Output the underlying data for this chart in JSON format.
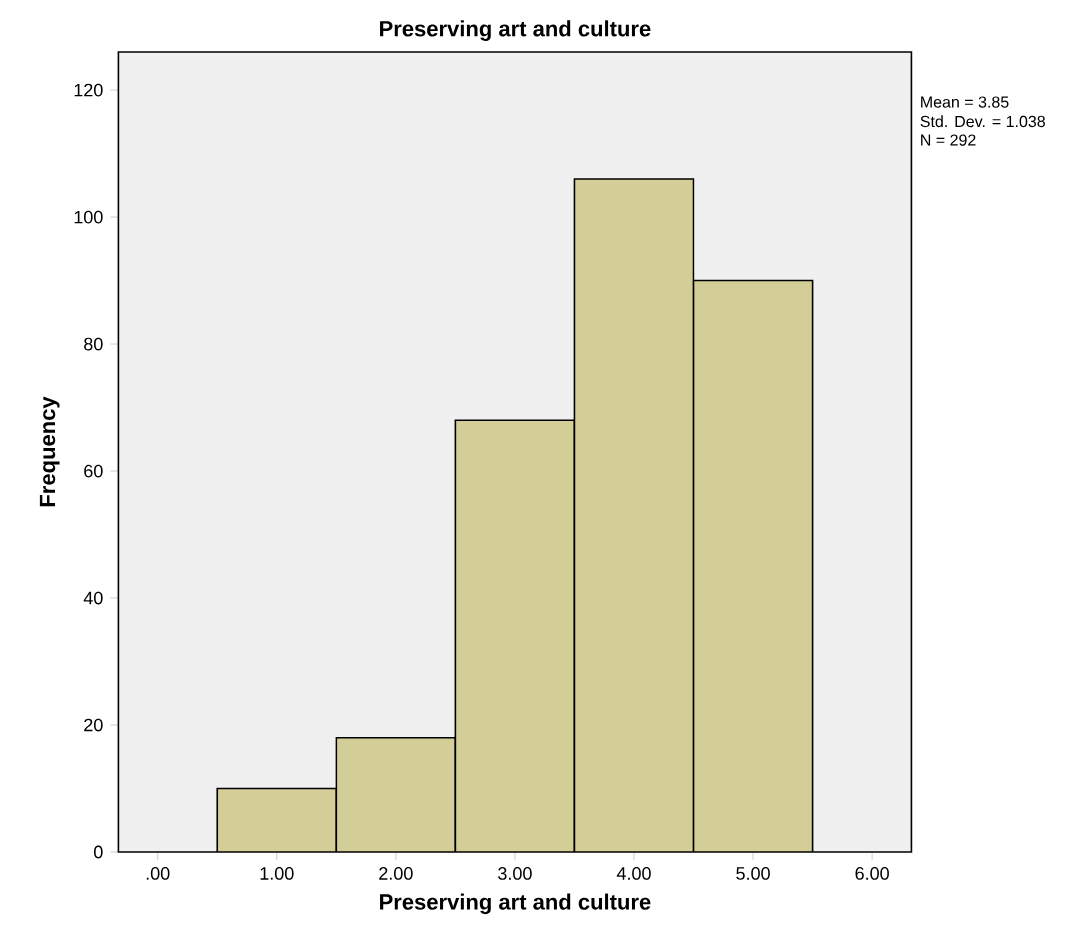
{
  "chart_data": {
    "type": "histogram",
    "title": "Preserving art and culture",
    "xlabel": "Preserving art and culture",
    "ylabel": "Frequency",
    "bins": [
      0.5,
      1.5,
      2.5,
      3.5,
      4.5,
      5.5
    ],
    "values": [
      10,
      18,
      68,
      106,
      90
    ],
    "color": "#d3ce97",
    "xlim": [
      -0.33,
      6.33
    ],
    "ylim": [
      0,
      126
    ],
    "xticks": [
      {
        "value": 0,
        "label": ".00"
      },
      {
        "value": 1,
        "label": "1.00"
      },
      {
        "value": 2,
        "label": "2.00"
      },
      {
        "value": 3,
        "label": "3.00"
      },
      {
        "value": 4,
        "label": "4.00"
      },
      {
        "value": 5,
        "label": "5.00"
      },
      {
        "value": 6,
        "label": "6.00"
      }
    ],
    "yticks": [
      0,
      20,
      40,
      60,
      80,
      100,
      120
    ],
    "annotations": [
      "Mean = 3.85",
      "Std. Dev. = 1.038",
      "N = 292"
    ]
  }
}
